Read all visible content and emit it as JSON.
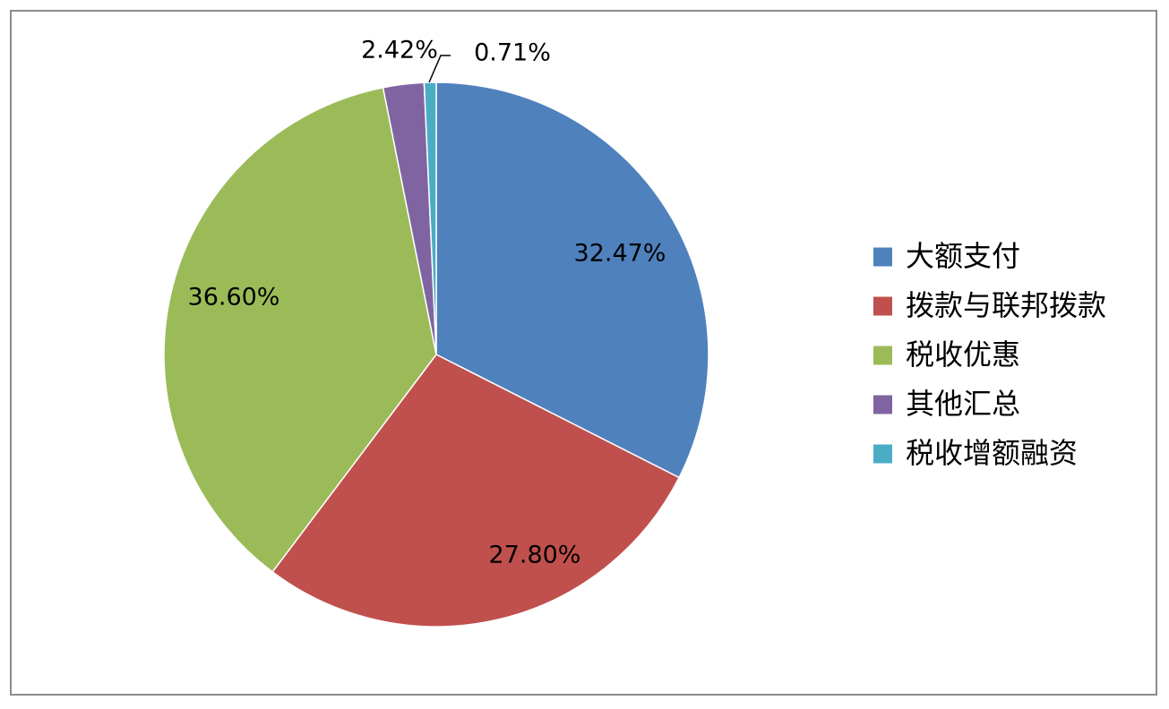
{
  "chart_data": {
    "type": "pie",
    "title": "",
    "legend_position": "right",
    "slices": [
      {
        "label": "大额支付",
        "value": 32.47,
        "value_label": "32.47%",
        "color": "#4F81BD"
      },
      {
        "label": "拨款与联邦拨款",
        "value": 27.8,
        "value_label": "27.80%",
        "color": "#C0504D"
      },
      {
        "label": "税收优惠",
        "value": 36.6,
        "value_label": "36.60%",
        "color": "#9BBB59"
      },
      {
        "label": "其他汇总",
        "value": 2.42,
        "value_label": "2.42%",
        "color": "#8064A2"
      },
      {
        "label": "税收增额融资",
        "value": 0.71,
        "value_label": "0.71%",
        "color": "#4BACC6"
      }
    ]
  }
}
